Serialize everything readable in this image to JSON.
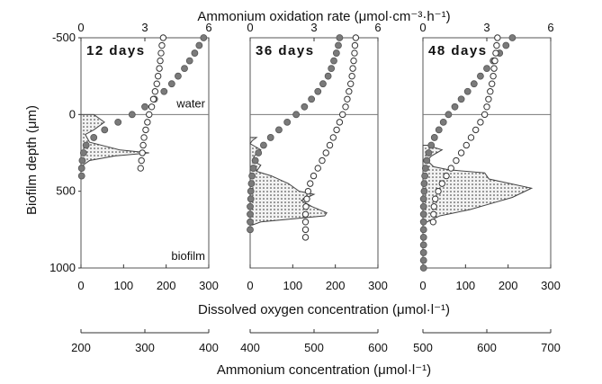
{
  "chart_data": {
    "type": "line",
    "top_axis_title": "Ammonium oxidation rate (μmol·cm⁻³·h⁻¹)",
    "y_axis_title": "Biofilm depth (μm)",
    "middle_axis_title": "Dissolved oxygen concentration (μmol·l⁻¹)",
    "bottom_axis_title": "Ammonium concentration (μmol·l⁻¹)",
    "water_label": "water",
    "biofilm_label": "biofilm",
    "ylim": [
      1000,
      -500
    ],
    "y_ticks": [
      -500,
      0,
      500,
      1000
    ],
    "rate_ticks": [
      0,
      3,
      6
    ],
    "do_ticks": [
      0,
      100,
      200,
      300
    ],
    "panels": [
      {
        "label": "12 days",
        "rate_range": [
          0,
          6
        ],
        "do_range": [
          0,
          300
        ],
        "ammonium_range": [
          200,
          400
        ],
        "ammonium_ticks": [
          200,
          300,
          400
        ],
        "dissolved_oxygen": {
          "depth": [
            -500,
            -450,
            -400,
            -350,
            -300,
            -250,
            -200,
            -150,
            -100,
            -50,
            0,
            50,
            100,
            150,
            200,
            250,
            300,
            350
          ],
          "value": [
            193,
            190,
            188,
            186,
            184,
            181,
            178,
            174,
            170,
            166,
            160,
            156,
            152,
            148,
            146,
            144,
            142,
            140
          ]
        },
        "ammonium": {
          "depth": [
            -500,
            -450,
            -400,
            -350,
            -300,
            -250,
            -200,
            -150,
            -100,
            -50,
            0,
            50,
            100,
            150,
            200,
            250,
            300,
            350,
            400
          ],
          "value": [
            392,
            385,
            378,
            370,
            362,
            352,
            342,
            330,
            315,
            300,
            280,
            258,
            237,
            220,
            208,
            204,
            202,
            201,
            201
          ]
        },
        "oxidation_rate": {
          "depth": [
            0,
            50,
            100,
            130,
            180,
            230,
            250,
            270,
            300,
            330,
            350
          ],
          "value": [
            0.6,
            1.1,
            0.6,
            0.2,
            0.4,
            1.8,
            3.2,
            1.6,
            0.4,
            0.1,
            0.0
          ]
        }
      },
      {
        "label": "36 days",
        "rate_range": [
          0,
          6
        ],
        "do_range": [
          0,
          300
        ],
        "ammonium_range": [
          400,
          600
        ],
        "ammonium_ticks": [
          400,
          500,
          600
        ],
        "dissolved_oxygen": {
          "depth": [
            -500,
            -450,
            -400,
            -350,
            -300,
            -250,
            -200,
            -150,
            -100,
            -50,
            0,
            50,
            100,
            150,
            200,
            250,
            300,
            350,
            400,
            450,
            500,
            550,
            600,
            650,
            700,
            750,
            800
          ],
          "value": [
            248,
            246,
            245,
            243,
            241,
            239,
            236,
            232,
            228,
            224,
            217,
            210,
            203,
            195,
            187,
            178,
            169,
            159,
            149,
            141,
            136,
            133,
            131,
            130,
            130,
            130,
            130
          ]
        },
        "ammonium": {
          "depth": [
            -500,
            -450,
            -400,
            -350,
            -300,
            -250,
            -200,
            -150,
            -100,
            -50,
            0,
            50,
            100,
            150,
            200,
            250,
            300,
            350,
            400,
            450,
            500,
            550,
            600,
            650,
            700,
            750
          ],
          "value": [
            540,
            538,
            535,
            531,
            527,
            522,
            514,
            506,
            496,
            485,
            472,
            458,
            445,
            432,
            421,
            413,
            408,
            405,
            403,
            402,
            401,
            401,
            400,
            400,
            400,
            400
          ]
        },
        "oxidation_rate": {
          "depth": [
            150,
            170,
            190,
            230,
            270,
            300,
            330,
            370,
            400,
            450,
            500,
            520,
            560,
            600,
            640,
            660,
            680,
            700,
            720
          ],
          "value": [
            0.3,
            0.1,
            0.0,
            0.5,
            0.2,
            0.1,
            0.5,
            0.3,
            1.0,
            1.8,
            2.3,
            3.0,
            2.4,
            2.9,
            3.6,
            3.5,
            2.0,
            0.5,
            0.1
          ]
        }
      },
      {
        "label": "48 days",
        "rate_range": [
          0,
          6
        ],
        "do_range": [
          0,
          300
        ],
        "ammonium_range": [
          500,
          700
        ],
        "ammonium_ticks": [
          500,
          600,
          700
        ],
        "dissolved_oxygen": {
          "depth": [
            -500,
            -450,
            -400,
            -350,
            -300,
            -250,
            -200,
            -150,
            -100,
            -50,
            0,
            50,
            100,
            150,
            200,
            250,
            300,
            350,
            400,
            450,
            500,
            550,
            600,
            650,
            700
          ],
          "value": [
            175,
            173,
            171,
            169,
            167,
            165,
            162,
            158,
            154,
            150,
            145,
            135,
            124,
            113,
            102,
            90,
            78,
            66,
            55,
            45,
            36,
            29,
            26,
            25,
            24
          ]
        },
        "ammonium": {
          "depth": [
            -500,
            -450,
            -400,
            -350,
            -300,
            -250,
            -200,
            -150,
            -100,
            -50,
            0,
            50,
            100,
            150,
            200,
            250,
            300,
            350,
            400,
            450,
            500,
            550,
            600,
            650,
            700,
            750,
            800,
            850,
            900,
            950,
            1000
          ],
          "value": [
            640,
            630,
            620,
            610,
            600,
            590,
            580,
            570,
            560,
            550,
            540,
            532,
            525,
            518,
            513,
            509,
            506,
            504,
            503,
            502,
            502,
            501,
            501,
            501,
            501,
            501,
            501,
            501,
            501,
            501,
            501
          ]
        },
        "oxidation_rate": {
          "depth": [
            200,
            230,
            270,
            300,
            340,
            360,
            380,
            420,
            480,
            540,
            580,
            620,
            660,
            700
          ],
          "value": [
            0.2,
            0.9,
            0.4,
            0.2,
            0.5,
            1.2,
            2.9,
            3.1,
            5.1,
            4.2,
            3.2,
            2.2,
            0.8,
            0.2
          ]
        }
      }
    ]
  }
}
